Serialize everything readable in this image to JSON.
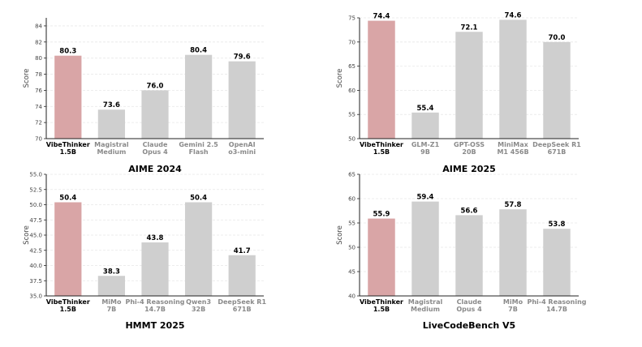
{
  "colors": {
    "highlight": "#d9a5a6",
    "bar": "#cfcfcf",
    "axis": "#222222",
    "grid": "#e8e8e8",
    "tick_text": "#444444",
    "highlight_label": "#000000",
    "other_label": "#8a8a8a"
  },
  "chart_data": [
    {
      "type": "bar",
      "title": "AIME 2024",
      "ylabel": "Score",
      "ylim": [
        70,
        85
      ],
      "yticks": [
        70,
        72,
        74,
        76,
        78,
        80,
        82,
        84
      ],
      "ytick_labels": [
        "70",
        "72",
        "74",
        "76",
        "78",
        "80",
        "82",
        "84"
      ],
      "grid": true,
      "highlight_index": 0,
      "categories": [
        [
          "VibeThinker",
          "1.5B"
        ],
        [
          "Magistral",
          "Medium"
        ],
        [
          "Claude",
          "Opus 4"
        ],
        [
          "Gemini 2.5",
          "Flash"
        ],
        [
          "OpenAI",
          "o3-mini"
        ]
      ],
      "values": [
        80.3,
        73.6,
        76.0,
        80.4,
        79.6
      ],
      "value_labels": [
        "80.3",
        "73.6",
        "76.0",
        "80.4",
        "79.6"
      ]
    },
    {
      "type": "bar",
      "title": "AIME 2025",
      "ylabel": "Score",
      "ylim": [
        50,
        75
      ],
      "yticks": [
        50,
        55,
        60,
        65,
        70,
        75
      ],
      "ytick_labels": [
        "50",
        "55",
        "60",
        "65",
        "70",
        "75"
      ],
      "grid": true,
      "highlight_index": 0,
      "categories": [
        [
          "VibeThinker",
          "1.5B"
        ],
        [
          "GLM-Z1",
          "9B"
        ],
        [
          "GPT-OSS",
          "20B"
        ],
        [
          "MiniMax",
          "M1 456B"
        ],
        [
          "DeepSeek R1",
          "671B"
        ]
      ],
      "values": [
        74.4,
        55.4,
        72.1,
        74.6,
        70.0
      ],
      "value_labels": [
        "74.4",
        "55.4",
        "72.1",
        "74.6",
        "70.0"
      ]
    },
    {
      "type": "bar",
      "title": "HMMT 2025",
      "ylabel": "Score",
      "ylim": [
        35,
        55
      ],
      "yticks": [
        35,
        37.5,
        40,
        42.5,
        45,
        47.5,
        50,
        52.5,
        55
      ],
      "ytick_labels": [
        "35.0",
        "37.5",
        "40.0",
        "42.5",
        "45.0",
        "47.5",
        "50.0",
        "52.5",
        "55.0"
      ],
      "grid": true,
      "highlight_index": 0,
      "categories": [
        [
          "VibeThinker",
          "1.5B"
        ],
        [
          "MiMo",
          "7B"
        ],
        [
          "Phi-4 Reasoning",
          "14.7B"
        ],
        [
          "Qwen3",
          "32B"
        ],
        [
          "DeepSeek R1",
          "671B"
        ]
      ],
      "values": [
        50.4,
        38.3,
        43.8,
        50.4,
        41.7
      ],
      "value_labels": [
        "50.4",
        "38.3",
        "43.8",
        "50.4",
        "41.7"
      ]
    },
    {
      "type": "bar",
      "title": "LiveCodeBench V5",
      "ylabel": "Score",
      "ylim": [
        40,
        65
      ],
      "yticks": [
        40,
        45,
        50,
        55,
        60,
        65
      ],
      "ytick_labels": [
        "40",
        "45",
        "50",
        "55",
        "60",
        "65"
      ],
      "grid": true,
      "highlight_index": 0,
      "categories": [
        [
          "VibeThinker",
          "1.5B"
        ],
        [
          "Magistral",
          "Medium"
        ],
        [
          "Claude",
          "Opus 4"
        ],
        [
          "MiMo",
          "7B"
        ],
        [
          "Phi-4 Reasoning",
          "14.7B"
        ]
      ],
      "values": [
        55.9,
        59.4,
        56.6,
        57.8,
        53.8
      ],
      "value_labels": [
        "55.9",
        "59.4",
        "56.6",
        "57.8",
        "53.8"
      ]
    }
  ]
}
